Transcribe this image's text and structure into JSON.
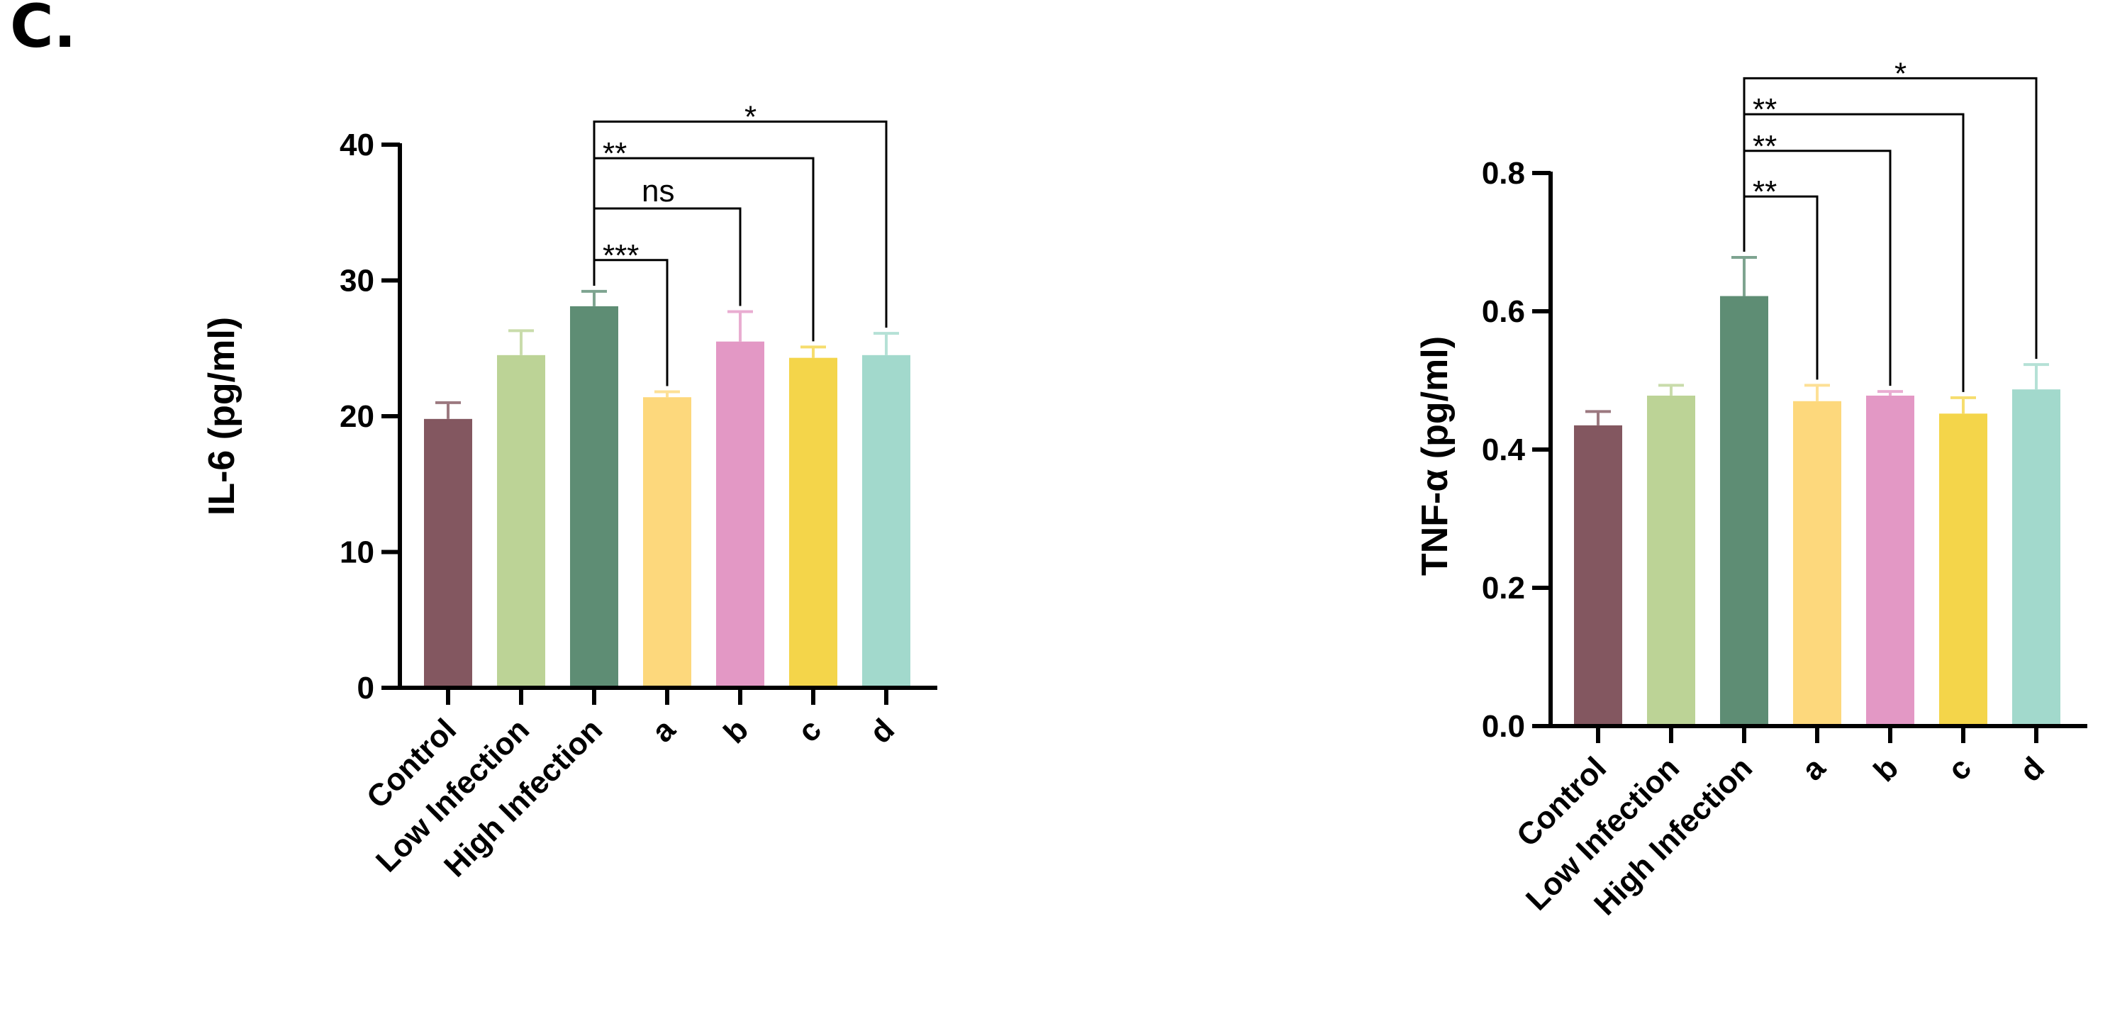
{
  "panel_label": "C.",
  "chart_data": [
    {
      "type": "bar",
      "title": "",
      "xlabel": "",
      "ylabel": "IL-6 (pg/ml)",
      "ylim": [
        0,
        40
      ],
      "yticks": [
        0,
        10,
        20,
        30,
        40
      ],
      "categories": [
        "Control",
        "Low Infection",
        "High Infection",
        "a",
        "b",
        "c",
        "d"
      ],
      "values": [
        19.8,
        24.5,
        28.1,
        21.4,
        25.5,
        24.3,
        24.5
      ],
      "errors": [
        1.2,
        1.8,
        1.1,
        0.4,
        2.2,
        0.8,
        1.6
      ],
      "colors": [
        "#835760",
        "#bcd396",
        "#5e8d74",
        "#fdd87c",
        "#e398c5",
        "#f4d54a",
        "#a2d9cc"
      ],
      "comparisons": [
        {
          "from": 2,
          "to": 3,
          "label": "***",
          "y": 31.5
        },
        {
          "from": 2,
          "to": 4,
          "label": "ns",
          "y": 35.3
        },
        {
          "from": 2,
          "to": 5,
          "label": "**",
          "y": 39.0
        },
        {
          "from": 2,
          "to": 6,
          "label": "*",
          "y": 41.7
        }
      ]
    },
    {
      "type": "bar",
      "title": "",
      "xlabel": "",
      "ylabel": "TNF-α (pg/ml)",
      "ylim": [
        0,
        0.8
      ],
      "yticks": [
        "0.0",
        "0.2",
        "0.4",
        "0.6",
        "0.8"
      ],
      "categories": [
        "Control",
        "Low Infection",
        "High Infection",
        "a",
        "b",
        "c",
        "d"
      ],
      "values": [
        0.435,
        0.478,
        0.622,
        0.47,
        0.478,
        0.452,
        0.487
      ],
      "errors": [
        0.02,
        0.015,
        0.056,
        0.023,
        0.006,
        0.023,
        0.036
      ],
      "colors": [
        "#835760",
        "#bcd396",
        "#5e8d74",
        "#fdd87c",
        "#e398c5",
        "#f4d54a",
        "#a2d9cc"
      ],
      "comparisons": [
        {
          "from": 2,
          "to": 3,
          "label": "**",
          "y": 0.766
        },
        {
          "from": 2,
          "to": 4,
          "label": "**",
          "y": 0.832
        },
        {
          "from": 2,
          "to": 5,
          "label": "**",
          "y": 0.885
        },
        {
          "from": 2,
          "to": 6,
          "label": "*",
          "y": 0.937
        }
      ]
    }
  ]
}
